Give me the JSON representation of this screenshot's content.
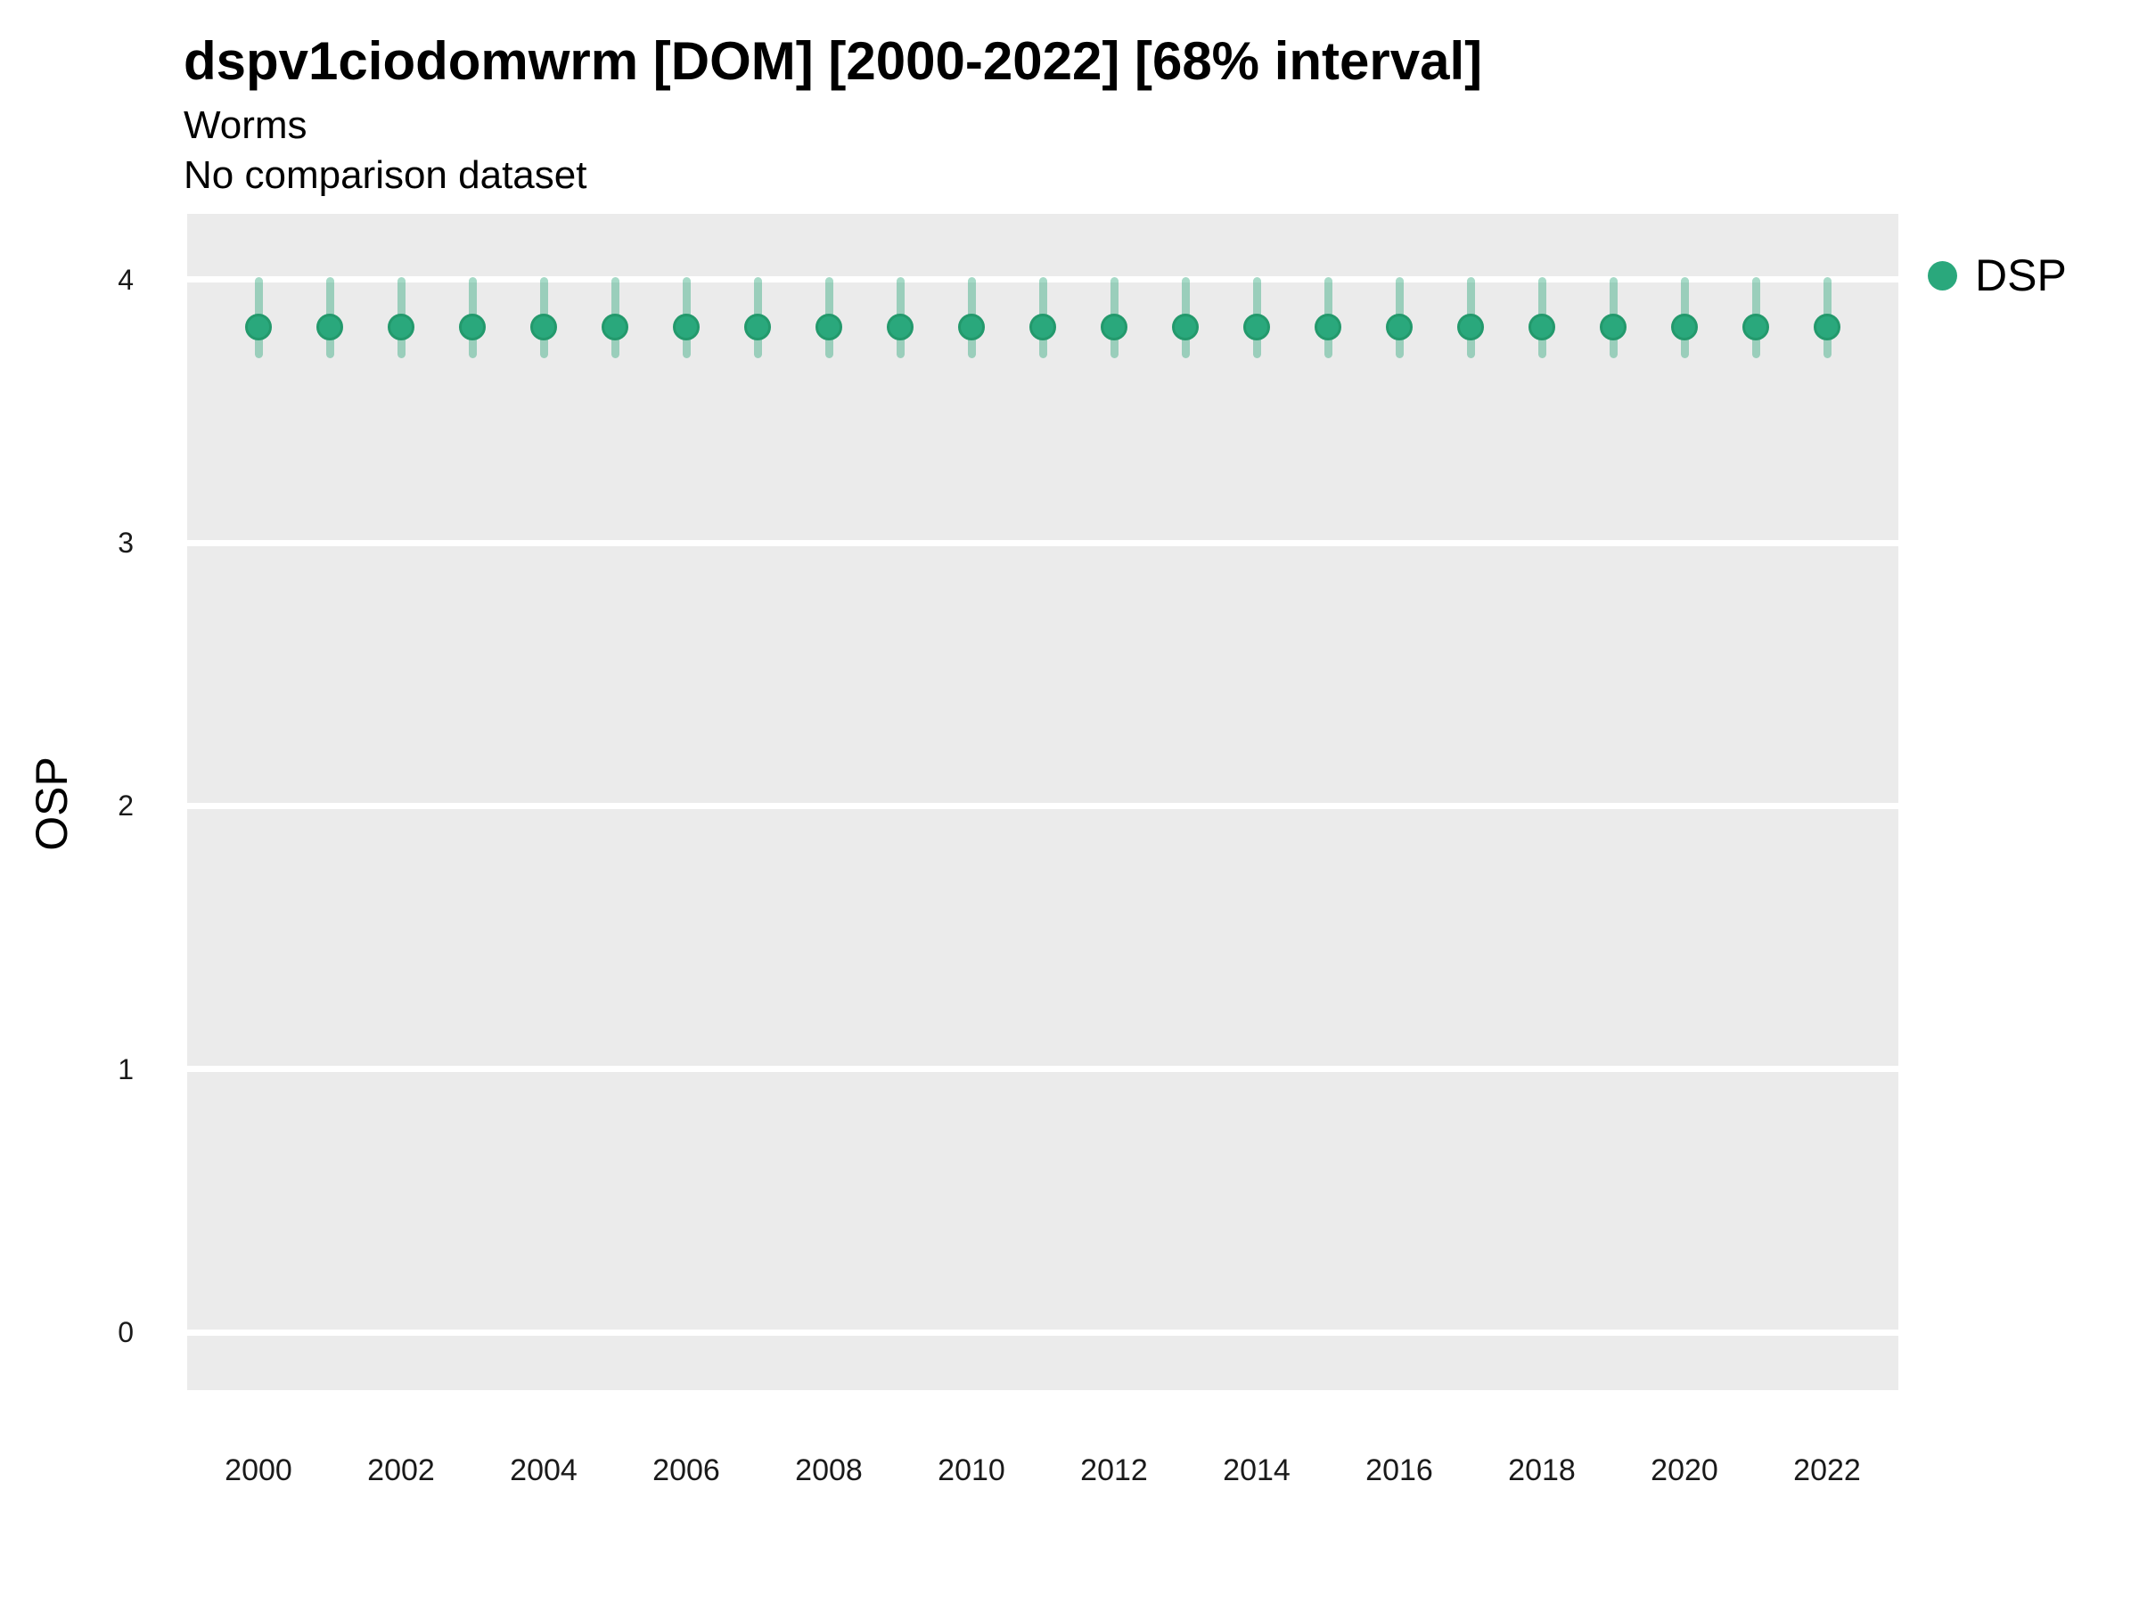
{
  "chart_data": {
    "type": "scatter",
    "title": "dspv1ciodomwrm [DOM] [2000-2022] [68% interval]",
    "subtitle": "Worms",
    "note": "No comparison dataset",
    "xlabel": "",
    "ylabel": "OSP",
    "interval": "68%",
    "x": [
      2000,
      2001,
      2002,
      2003,
      2004,
      2005,
      2006,
      2007,
      2008,
      2009,
      2010,
      2011,
      2012,
      2013,
      2014,
      2015,
      2016,
      2017,
      2018,
      2019,
      2020,
      2021,
      2022
    ],
    "series": [
      {
        "name": "DSP",
        "values": [
          3.82,
          3.82,
          3.82,
          3.82,
          3.82,
          3.82,
          3.82,
          3.82,
          3.82,
          3.82,
          3.82,
          3.82,
          3.82,
          3.82,
          3.82,
          3.82,
          3.82,
          3.82,
          3.82,
          3.82,
          3.82,
          3.82,
          3.82
        ],
        "low": [
          3.7,
          3.7,
          3.7,
          3.7,
          3.7,
          3.7,
          3.7,
          3.7,
          3.7,
          3.7,
          3.7,
          3.7,
          3.7,
          3.7,
          3.7,
          3.7,
          3.7,
          3.7,
          3.7,
          3.7,
          3.7,
          3.7,
          3.7
        ],
        "high": [
          4.01,
          4.01,
          4.01,
          4.01,
          4.01,
          4.01,
          4.01,
          4.01,
          4.01,
          4.01,
          4.01,
          4.01,
          4.01,
          4.01,
          4.01,
          4.01,
          4.01,
          4.01,
          4.01,
          4.01,
          4.01,
          4.01,
          4.01
        ]
      }
    ],
    "ylim": [
      -0.22,
      4.25
    ],
    "yticks": [
      0,
      1,
      2,
      3,
      4
    ],
    "xticks": [
      2000,
      2002,
      2004,
      2006,
      2008,
      2010,
      2012,
      2014,
      2016,
      2018,
      2020,
      2022
    ],
    "grid": "horizontal-major-only",
    "legend_position": "right",
    "colors": {
      "point": "#2AA87C",
      "point_border": "#23996C",
      "interval_band": "#2AA77A",
      "interval_alpha": 0.42,
      "panel_background": "#EBEBEB",
      "gridline": "#FFFFFF",
      "text": "#000000",
      "tick_text": "#1A1A1A"
    }
  }
}
